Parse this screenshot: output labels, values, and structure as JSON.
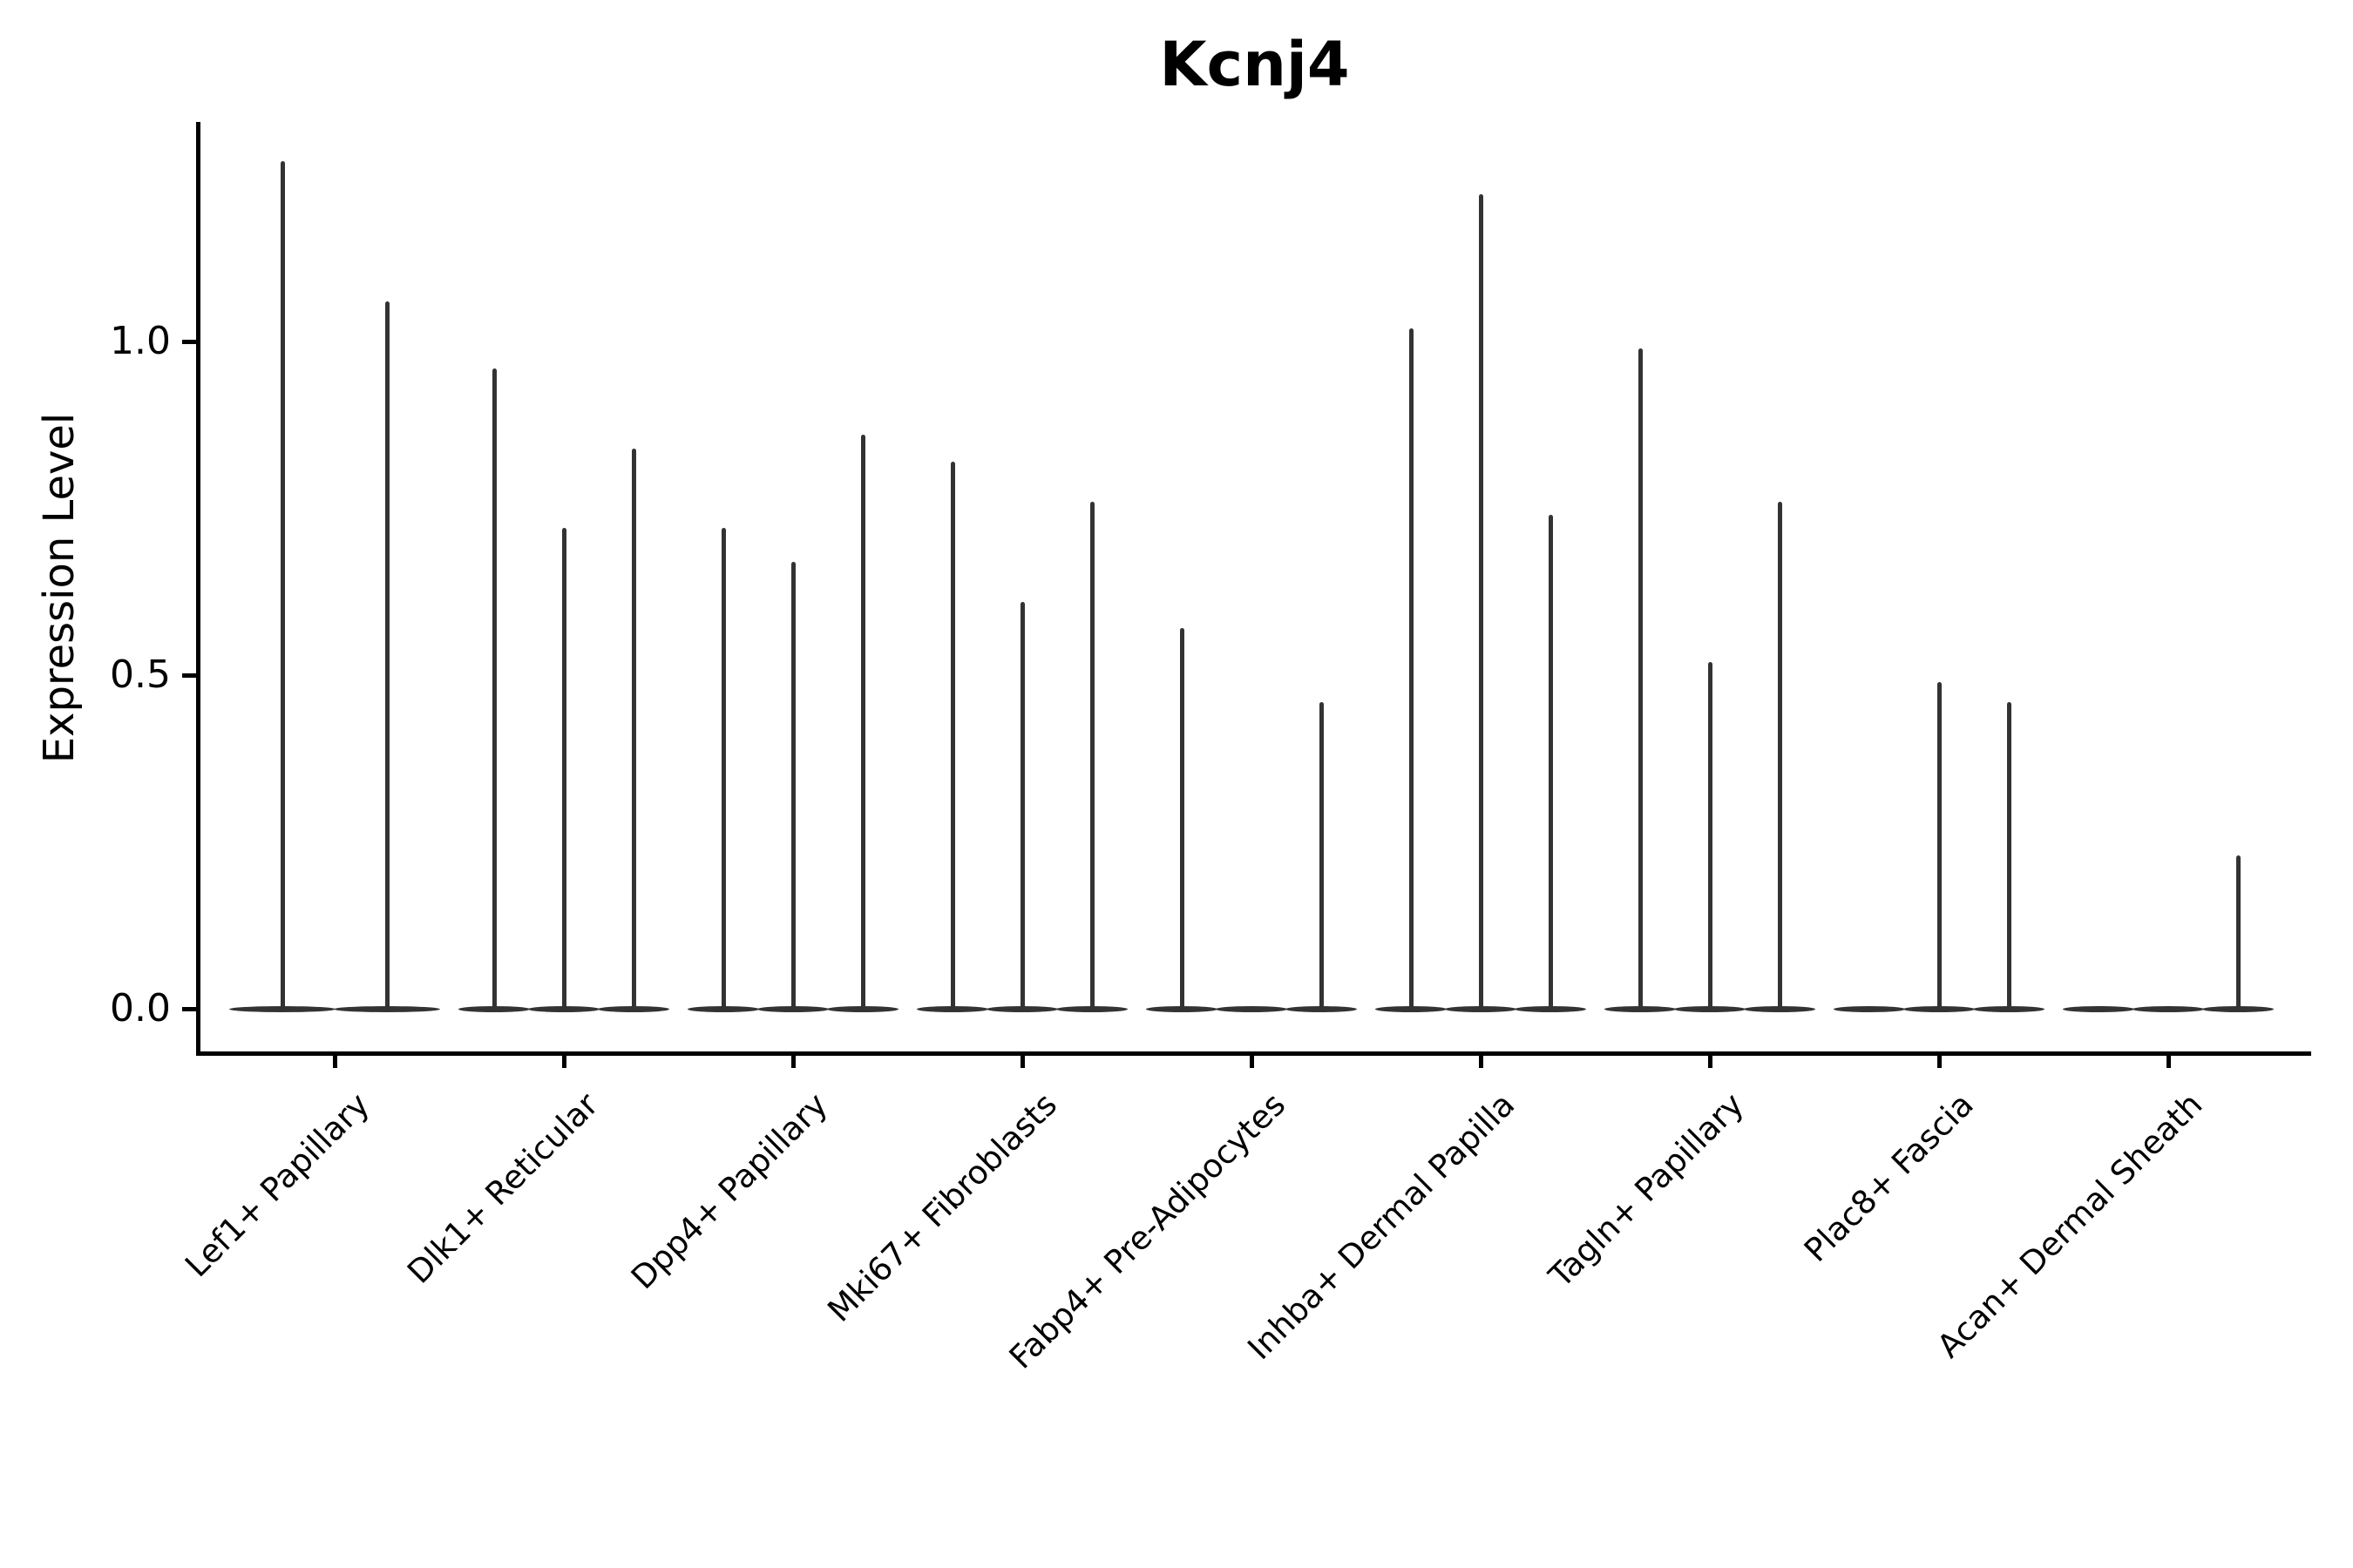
{
  "chart_data": {
    "type": "violin",
    "title": "Kcnj4",
    "ylabel": "Expression Level",
    "xlabel": "",
    "grid": false,
    "legend_position": "none",
    "background_color": "#ffffff",
    "axis_color": "#000000",
    "violin_color": "#333333",
    "ylim": [
      -0.07,
      1.33
    ],
    "y_ticks": [
      {
        "value": 0.0,
        "label": "0.0"
      },
      {
        "value": 0.5,
        "label": "0.5"
      },
      {
        "value": 1.0,
        "label": "1.0"
      }
    ],
    "categories": [
      "Lef1+ Papillary",
      "Dlk1+ Reticular",
      "Dpp4+ Papillary",
      "Mki67+ Fibroblasts",
      "Fabp4+ Pre-Adipocytes",
      "Inhba+ Dermal Papilla",
      "Tagln+ Papillary",
      "Plac8+ Fascia",
      "Acan+ Dermal Sheath"
    ],
    "groups": [
      {
        "category": "Lef1+ Papillary",
        "violin_max_values": [
          1.27,
          1.06
        ]
      },
      {
        "category": "Dlk1+ Reticular",
        "violin_max_values": [
          0.96,
          0.72,
          0.84
        ]
      },
      {
        "category": "Dpp4+ Papillary",
        "violin_max_values": [
          0.72,
          0.67,
          0.86
        ]
      },
      {
        "category": "Mki67+ Fibroblasts",
        "violin_max_values": [
          0.82,
          0.61,
          0.76
        ]
      },
      {
        "category": "Fabp4+ Pre-Adipocytes",
        "violin_max_values": [
          0.57,
          0.0,
          0.46
        ]
      },
      {
        "category": "Inhba+ Dermal Papilla",
        "violin_max_values": [
          1.02,
          1.22,
          0.74
        ]
      },
      {
        "category": "Tagln+ Papillary",
        "violin_max_values": [
          0.99,
          0.52,
          0.76
        ]
      },
      {
        "category": "Plac8+ Fascia",
        "violin_max_values": [
          0.0,
          0.49,
          0.46
        ]
      },
      {
        "category": "Acan+ Dermal Sheath",
        "violin_max_values": [
          0.0,
          0.0,
          0.23
        ]
      }
    ],
    "violin_description": "Each violin is a distribution concentrated at 0 with a thin tail reaching its listed maximum expression value."
  }
}
